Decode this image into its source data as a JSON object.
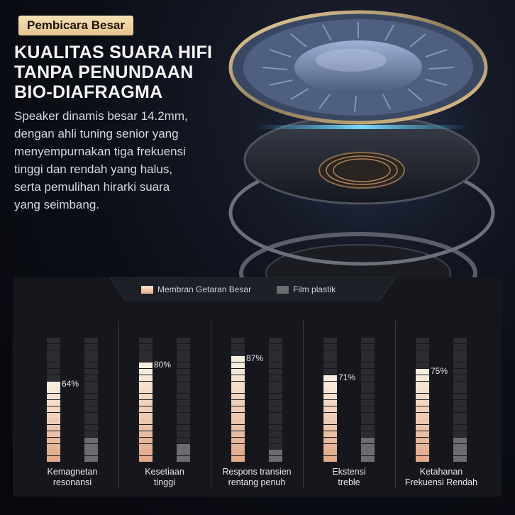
{
  "badge": "Pembicara Besar",
  "headline": [
    "KUALITAS SUARA HIFI",
    "TANPA PENUNDAAN",
    "BIO-DIAFRAGMA"
  ],
  "description": [
    "Speaker dinamis besar 14.2mm,",
    "dengan ahli tuning senior yang",
    "menyempurnakan tiga frekuensi",
    "tinggi dan rendah yang halus,",
    "serta pemulihan hirarki suara",
    "yang seimbang."
  ],
  "colors": {
    "accent_gold": "#e6c38e",
    "series_a_top": "#f8efe0",
    "series_a_bottom": "#e2a98a",
    "series_b": "#6a6c70",
    "bar_empty": "#2a2c32"
  },
  "chart_data": {
    "type": "bar",
    "categories": [
      [
        "Kemagnetan",
        "resonansi"
      ],
      [
        "Kesetiaan",
        "tinggi"
      ],
      [
        "Respons transien",
        "rentang penuh"
      ],
      [
        "Ekstensi",
        "treble"
      ],
      [
        "Ketahanan",
        "Frekuensi Rendah"
      ]
    ],
    "series": [
      {
        "name": "Membran Getaran Besar",
        "values": [
          64,
          80,
          87,
          71,
          75
        ],
        "labels": [
          "64%",
          "80%",
          "87%",
          "71%",
          "75%"
        ]
      },
      {
        "name": "Film plastik",
        "values": [
          22,
          16,
          11,
          22,
          18
        ]
      }
    ],
    "ylim": [
      0,
      100
    ],
    "legend": "top-center"
  }
}
